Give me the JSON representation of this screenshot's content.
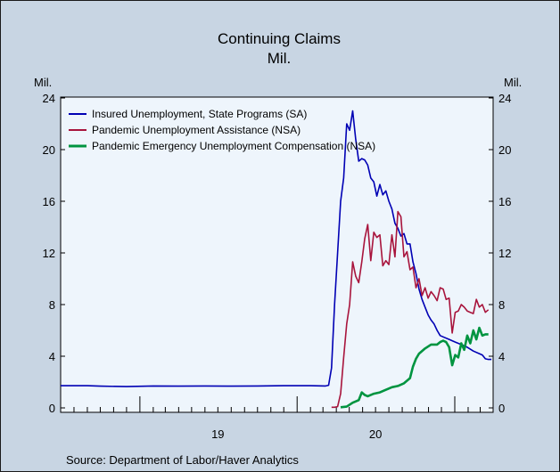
{
  "chart_data": {
    "type": "line",
    "title": "Continuing Claims",
    "subtitle": "Mil.",
    "ylabel_left": "Mil.",
    "ylabel_right": "Mil.",
    "ylim": [
      0,
      24
    ],
    "yticks": [
      0,
      4,
      8,
      12,
      16,
      20,
      24
    ],
    "xlim": [
      "2018-07-01",
      "2021-03-31"
    ],
    "year_labels": [
      {
        "label": "19",
        "center": "2019-07-01"
      },
      {
        "label": "20",
        "center": "2020-07-01"
      }
    ],
    "grid": false,
    "legend": "top-left",
    "source": "Source: Department of Labor/Haver Analytics",
    "series": [
      {
        "name": "Insured Unemployment, State Programs (SA)",
        "color": "#0000b4",
        "points": [
          [
            "2018-07-01",
            1.72
          ],
          [
            "2018-09-01",
            1.72
          ],
          [
            "2018-10-01",
            1.68
          ],
          [
            "2018-12-01",
            1.65
          ],
          [
            "2019-02-01",
            1.7
          ],
          [
            "2019-04-01",
            1.68
          ],
          [
            "2019-06-01",
            1.7
          ],
          [
            "2019-08-01",
            1.68
          ],
          [
            "2019-10-01",
            1.7
          ],
          [
            "2019-12-01",
            1.72
          ],
          [
            "2020-02-01",
            1.72
          ],
          [
            "2020-03-07",
            1.7
          ],
          [
            "2020-03-14",
            1.75
          ],
          [
            "2020-03-21",
            3.1
          ],
          [
            "2020-03-28",
            8.0
          ],
          [
            "2020-04-04",
            12.0
          ],
          [
            "2020-04-11",
            16.0
          ],
          [
            "2020-04-18",
            17.8
          ],
          [
            "2020-04-25",
            22.0
          ],
          [
            "2020-05-02",
            21.5
          ],
          [
            "2020-05-09",
            23.0
          ],
          [
            "2020-05-16",
            20.8
          ],
          [
            "2020-05-23",
            19.1
          ],
          [
            "2020-05-30",
            19.3
          ],
          [
            "2020-06-06",
            19.2
          ],
          [
            "2020-06-13",
            18.8
          ],
          [
            "2020-06-20",
            17.8
          ],
          [
            "2020-06-27",
            17.5
          ],
          [
            "2020-07-04",
            16.4
          ],
          [
            "2020-07-11",
            17.3
          ],
          [
            "2020-07-18",
            16.5
          ],
          [
            "2020-07-25",
            16.8
          ],
          [
            "2020-08-01",
            16.0
          ],
          [
            "2020-08-08",
            15.4
          ],
          [
            "2020-08-15",
            14.3
          ],
          [
            "2020-08-22",
            13.9
          ],
          [
            "2020-08-29",
            13.3
          ],
          [
            "2020-09-05",
            13.5
          ],
          [
            "2020-09-12",
            12.7
          ],
          [
            "2020-09-19",
            12.7
          ],
          [
            "2020-09-26",
            11.3
          ],
          [
            "2020-10-03",
            10.4
          ],
          [
            "2020-10-10",
            9.2
          ],
          [
            "2020-10-17",
            8.4
          ],
          [
            "2020-10-24",
            7.8
          ],
          [
            "2020-10-31",
            7.2
          ],
          [
            "2020-11-07",
            6.8
          ],
          [
            "2020-11-14",
            6.5
          ],
          [
            "2020-11-21",
            6.0
          ],
          [
            "2020-11-28",
            5.6
          ],
          [
            "2020-12-05",
            5.5
          ],
          [
            "2020-12-19",
            5.3
          ],
          [
            "2021-01-02",
            5.1
          ],
          [
            "2021-01-16",
            4.9
          ],
          [
            "2021-01-30",
            4.7
          ],
          [
            "2021-02-13",
            4.4
          ],
          [
            "2021-02-27",
            4.2
          ],
          [
            "2021-03-06",
            4.1
          ],
          [
            "2021-03-13",
            3.8
          ],
          [
            "2021-03-20",
            3.75
          ],
          [
            "2021-03-27",
            3.75
          ]
        ]
      },
      {
        "name": "Pandemic Unemployment Assistance (NSA)",
        "color": "#a8143c",
        "points": [
          [
            "2020-03-21",
            0.05
          ],
          [
            "2020-03-28",
            0.05
          ],
          [
            "2020-04-04",
            0.1
          ],
          [
            "2020-04-11",
            1.1
          ],
          [
            "2020-04-18",
            3.9
          ],
          [
            "2020-04-25",
            6.5
          ],
          [
            "2020-05-02",
            8.0
          ],
          [
            "2020-05-09",
            11.3
          ],
          [
            "2020-05-16",
            10.2
          ],
          [
            "2020-05-23",
            9.7
          ],
          [
            "2020-05-30",
            11.3
          ],
          [
            "2020-06-06",
            13.1
          ],
          [
            "2020-06-13",
            14.2
          ],
          [
            "2020-06-20",
            11.4
          ],
          [
            "2020-06-27",
            13.6
          ],
          [
            "2020-07-04",
            13.2
          ],
          [
            "2020-07-11",
            13.4
          ],
          [
            "2020-07-18",
            11.0
          ],
          [
            "2020-07-25",
            11.4
          ],
          [
            "2020-08-01",
            11.1
          ],
          [
            "2020-08-08",
            13.4
          ],
          [
            "2020-08-15",
            11.7
          ],
          [
            "2020-08-22",
            15.2
          ],
          [
            "2020-08-29",
            14.8
          ],
          [
            "2020-09-05",
            11.7
          ],
          [
            "2020-09-12",
            12.1
          ],
          [
            "2020-09-19",
            10.7
          ],
          [
            "2020-09-26",
            10.9
          ],
          [
            "2020-10-03",
            9.3
          ],
          [
            "2020-10-10",
            10.0
          ],
          [
            "2020-10-17",
            8.7
          ],
          [
            "2020-10-24",
            9.3
          ],
          [
            "2020-10-31",
            8.5
          ],
          [
            "2020-11-07",
            9.0
          ],
          [
            "2020-11-14",
            8.7
          ],
          [
            "2020-11-21",
            8.3
          ],
          [
            "2020-11-28",
            9.3
          ],
          [
            "2020-12-05",
            9.2
          ],
          [
            "2020-12-12",
            8.4
          ],
          [
            "2020-12-19",
            8.5
          ],
          [
            "2020-12-26",
            5.8
          ],
          [
            "2021-01-02",
            7.4
          ],
          [
            "2021-01-09",
            7.5
          ],
          [
            "2021-01-16",
            8.0
          ],
          [
            "2021-01-23",
            7.8
          ],
          [
            "2021-01-30",
            7.5
          ],
          [
            "2021-02-06",
            7.4
          ],
          [
            "2021-02-13",
            7.3
          ],
          [
            "2021-02-20",
            8.4
          ],
          [
            "2021-02-27",
            7.8
          ],
          [
            "2021-03-06",
            8.0
          ],
          [
            "2021-03-13",
            7.4
          ],
          [
            "2021-03-20",
            7.6
          ]
        ]
      },
      {
        "name": "Pandemic Emergency Unemployment Compensation (NSA)",
        "color": "#009440",
        "points": [
          [
            "2020-04-11",
            0.05
          ],
          [
            "2020-04-25",
            0.1
          ],
          [
            "2020-05-09",
            0.4
          ],
          [
            "2020-05-23",
            0.6
          ],
          [
            "2020-05-30",
            1.2
          ],
          [
            "2020-06-06",
            1.0
          ],
          [
            "2020-06-13",
            0.9
          ],
          [
            "2020-06-27",
            1.1
          ],
          [
            "2020-07-11",
            1.2
          ],
          [
            "2020-07-25",
            1.4
          ],
          [
            "2020-08-08",
            1.6
          ],
          [
            "2020-08-22",
            1.7
          ],
          [
            "2020-09-05",
            1.9
          ],
          [
            "2020-09-19",
            2.3
          ],
          [
            "2020-09-26",
            3.2
          ],
          [
            "2020-10-03",
            3.8
          ],
          [
            "2020-10-10",
            4.2
          ],
          [
            "2020-10-24",
            4.6
          ],
          [
            "2020-11-07",
            4.9
          ],
          [
            "2020-11-21",
            4.9
          ],
          [
            "2020-11-28",
            5.1
          ],
          [
            "2020-12-05",
            5.2
          ],
          [
            "2020-12-12",
            5.1
          ],
          [
            "2020-12-19",
            4.7
          ],
          [
            "2020-12-26",
            3.3
          ],
          [
            "2021-01-02",
            4.1
          ],
          [
            "2021-01-09",
            3.9
          ],
          [
            "2021-01-16",
            5.0
          ],
          [
            "2021-01-23",
            4.5
          ],
          [
            "2021-01-30",
            5.6
          ],
          [
            "2021-02-06",
            5.0
          ],
          [
            "2021-02-13",
            6.0
          ],
          [
            "2021-02-20",
            5.3
          ],
          [
            "2021-02-27",
            6.2
          ],
          [
            "2021-03-06",
            5.6
          ],
          [
            "2021-03-13",
            5.7
          ],
          [
            "2021-03-20",
            5.7
          ]
        ]
      }
    ]
  }
}
